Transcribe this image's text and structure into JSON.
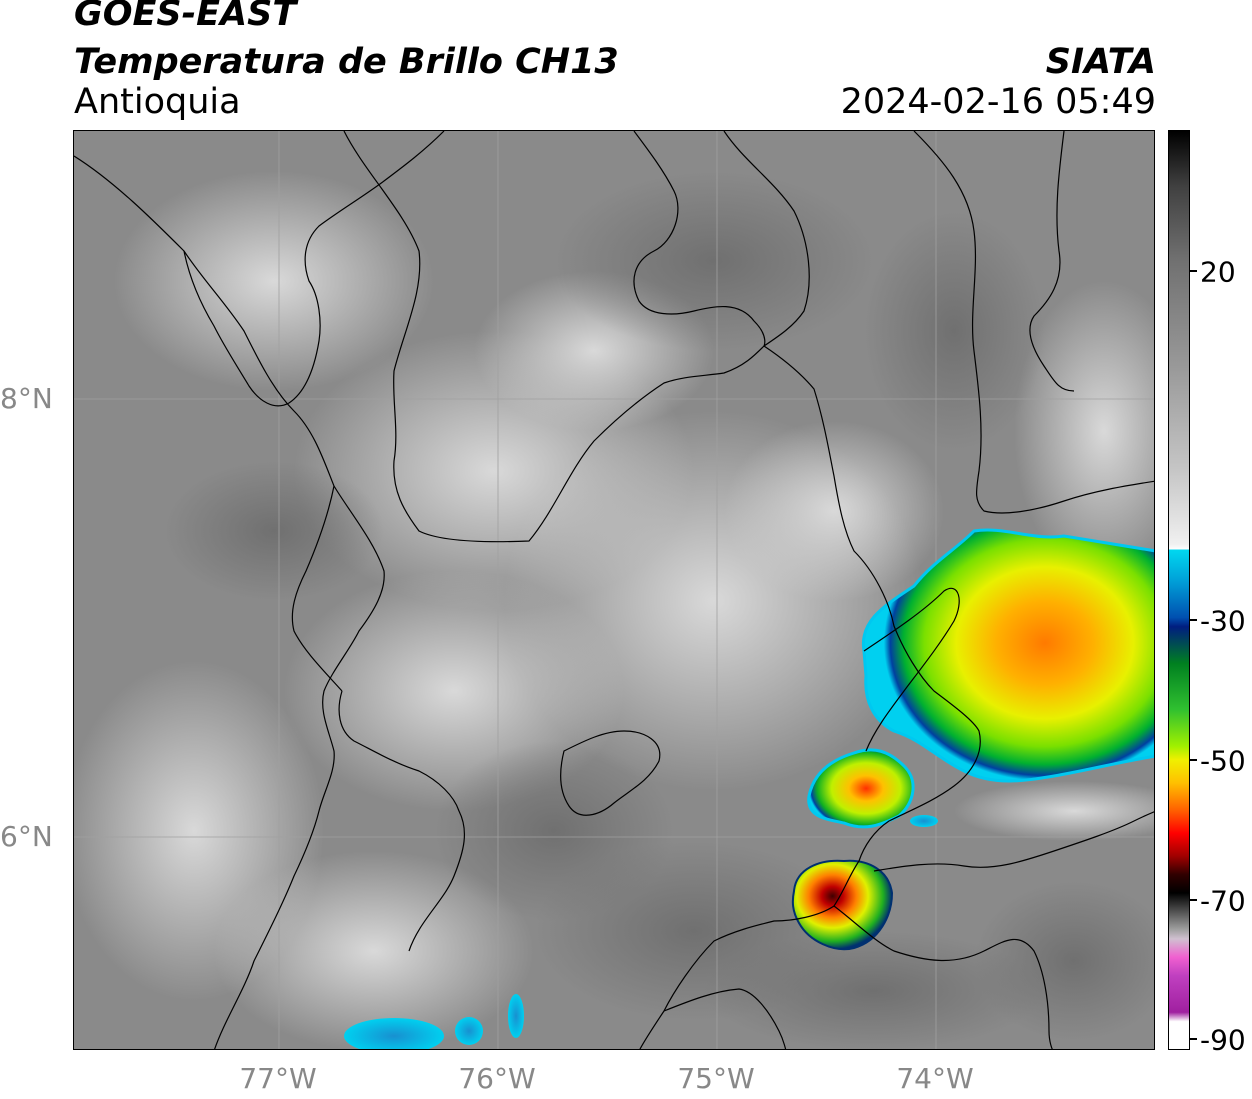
{
  "header": {
    "satellite": "GOES-EAST",
    "product": "Temperatura de Brillo CH13",
    "region": "Antioquia",
    "organization": "SIATA",
    "datetime": "2024-02-16 05:49"
  },
  "map": {
    "latitude_labels": [
      "8°N",
      "6°N"
    ],
    "longitude_labels": [
      "77°W",
      "76°W",
      "75°W",
      "74°W"
    ],
    "colors": {
      "background_gray": "#8c8c8c",
      "cloud_light": "#d8d8d8",
      "boundary": "#000000",
      "gridline": "#999999"
    },
    "storm_cells": [
      {
        "name": "northeast-convective-system",
        "min_temp_c": -55
      },
      {
        "name": "central-convective-cell",
        "min_temp_c": -55
      },
      {
        "name": "southern-convective-cell",
        "min_temp_c": -65
      }
    ]
  },
  "colorbar": {
    "labels": [
      "20",
      "-30",
      "-50",
      "-70",
      "-90"
    ],
    "unit_hint": "brightness temperature",
    "ticks": [
      20,
      -30,
      -50,
      -70,
      -90
    ],
    "range": [
      -90,
      30
    ]
  }
}
